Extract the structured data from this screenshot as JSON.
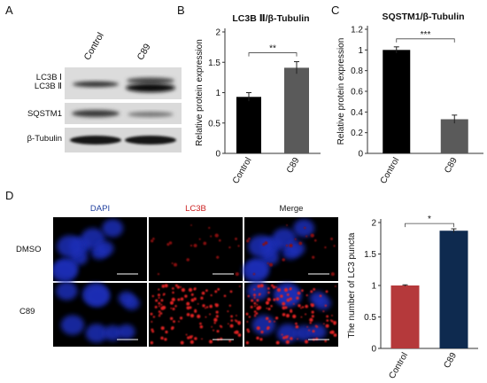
{
  "panels": {
    "a": "A",
    "b": "B",
    "c": "C",
    "d": "D"
  },
  "blot": {
    "samples": [
      "Control",
      "C89"
    ],
    "rows": [
      {
        "label_lines": [
          "LC3B Ⅰ",
          "LC3B Ⅱ"
        ]
      },
      {
        "label_lines": [
          "SQSTM1"
        ]
      },
      {
        "label_lines": [
          "β-Tubulin"
        ]
      }
    ]
  },
  "microscopy": {
    "channels": [
      {
        "label": "DAPI",
        "color": "#1f3f9e"
      },
      {
        "label": "LC3B",
        "color": "#cc1f1f"
      },
      {
        "label": "Merge",
        "color": "#1a1a1a"
      }
    ],
    "rows": [
      "DMSO",
      "C89"
    ]
  },
  "chart_data": [
    {
      "type": "bar",
      "title": "LC3B Ⅱ/β-Tubulin",
      "ylabel": "Relative protein expression",
      "xlabel": "",
      "categories": [
        "Control",
        "C89"
      ],
      "values": [
        0.93,
        1.41
      ],
      "errors": [
        0.07,
        0.1
      ],
      "colors": [
        "#000000",
        "#5a5a5a"
      ],
      "ylim": [
        0,
        2
      ],
      "yticks": [
        "0",
        "0.5",
        "1",
        "1.5",
        "2"
      ],
      "significance": "**",
      "grid": false
    },
    {
      "type": "bar",
      "title": "SQSTM1/β-Tubulin",
      "ylabel": "Relative protein expression",
      "xlabel": "",
      "categories": [
        "Control",
        "C89"
      ],
      "values": [
        1.0,
        0.33
      ],
      "errors": [
        0.03,
        0.04
      ],
      "colors": [
        "#000000",
        "#5a5a5a"
      ],
      "ylim": [
        0,
        1.2
      ],
      "yticks": [
        "0",
        "0.2",
        "0.4",
        "0.6",
        "0.8",
        "1",
        "1.2"
      ],
      "significance": "***",
      "grid": false
    },
    {
      "type": "bar",
      "title": "",
      "ylabel": "The number of LC3 puncta",
      "xlabel": "",
      "categories": [
        "Control",
        "C89"
      ],
      "values": [
        1.0,
        1.87
      ],
      "errors": [
        0.01,
        0.03
      ],
      "colors": [
        "#b5393b",
        "#0e2a4f"
      ],
      "ylim": [
        0,
        2
      ],
      "yticks": [
        "0",
        "0.5",
        "1",
        "1.5",
        "2"
      ],
      "significance": "*",
      "grid": false
    }
  ]
}
